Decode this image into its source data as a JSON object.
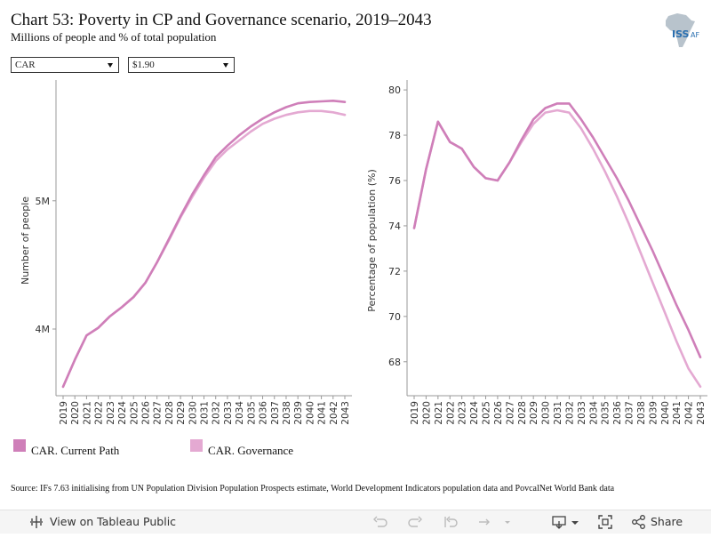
{
  "header": {
    "title": "Chart 53: Poverty in CP and Governance scenario, 2019–2043",
    "subtitle": "Millions of people and % of total population",
    "logo_text": "ISS",
    "logo_suffix": "AF"
  },
  "filters": {
    "country": "CAR",
    "poverty_line": "$1.90"
  },
  "colors": {
    "current_path": "#cf7fb9",
    "governance": "#e4a9d2",
    "axis": "#999999"
  },
  "legend": {
    "items": [
      {
        "label": "CAR. Current Path",
        "color": "#cf7fb9"
      },
      {
        "label": "CAR. Governance",
        "color": "#e4a9d2"
      }
    ]
  },
  "chart_data": [
    {
      "type": "line",
      "ylabel": "Number of people",
      "x": [
        2019,
        2020,
        2021,
        2022,
        2023,
        2024,
        2025,
        2026,
        2027,
        2028,
        2029,
        2030,
        2031,
        2032,
        2033,
        2034,
        2035,
        2036,
        2037,
        2038,
        2039,
        2040,
        2041,
        2042,
        2043
      ],
      "x_tick_labels": [
        "2019",
        "2020",
        "2021",
        "2022",
        "2023",
        "2024",
        "2025",
        "2026",
        "2027",
        "2028",
        "2029",
        "2030",
        "2031",
        "2032",
        "2033",
        "2034",
        "2035",
        "2036",
        "2037",
        "2038",
        "2039",
        "2040",
        "2041",
        "2042",
        "2043"
      ],
      "y_ticks": [
        4000000,
        5000000
      ],
      "y_tick_labels": [
        "4M",
        "5M"
      ],
      "ylim": [
        3480000,
        5900000
      ],
      "series": [
        {
          "name": "CAR. Current Path",
          "color": "#cf7fb9",
          "values": [
            3550000,
            3760000,
            3950000,
            4010000,
            4100000,
            4170000,
            4250000,
            4360000,
            4520000,
            4700000,
            4880000,
            5050000,
            5200000,
            5340000,
            5430000,
            5510000,
            5580000,
            5640000,
            5690000,
            5730000,
            5760000,
            5770000,
            5775000,
            5780000,
            5770000
          ]
        },
        {
          "name": "CAR. Governance",
          "color": "#e4a9d2",
          "values": [
            3550000,
            3760000,
            3950000,
            4010000,
            4100000,
            4170000,
            4250000,
            4360000,
            4520000,
            4690000,
            4870000,
            5030000,
            5180000,
            5310000,
            5400000,
            5470000,
            5540000,
            5600000,
            5640000,
            5670000,
            5690000,
            5700000,
            5700000,
            5690000,
            5670000
          ]
        }
      ]
    },
    {
      "type": "line",
      "ylabel": "Percentage of population (%)",
      "x": [
        2019,
        2020,
        2021,
        2022,
        2023,
        2024,
        2025,
        2026,
        2027,
        2028,
        2029,
        2030,
        2031,
        2032,
        2033,
        2034,
        2035,
        2036,
        2037,
        2038,
        2039,
        2040,
        2041,
        2042,
        2043
      ],
      "x_tick_labels": [
        "2019",
        "2020",
        "2021",
        "2022",
        "2023",
        "2024",
        "2025",
        "2026",
        "2027",
        "2028",
        "2029",
        "2030",
        "2031",
        "2032",
        "2033",
        "2034",
        "2035",
        "2036",
        "2037",
        "2038",
        "2039",
        "2040",
        "2041",
        "2042",
        "2043"
      ],
      "y_ticks": [
        68,
        70,
        72,
        74,
        76,
        78,
        80
      ],
      "y_tick_labels": [
        "68",
        "70",
        "72",
        "74",
        "76",
        "78",
        "80"
      ],
      "ylim": [
        66.5,
        80.2
      ],
      "series": [
        {
          "name": "CAR. Current Path",
          "color": "#cf7fb9",
          "values": [
            73.9,
            76.5,
            78.6,
            77.7,
            77.4,
            76.6,
            76.1,
            76.0,
            76.8,
            77.8,
            78.7,
            79.2,
            79.4,
            79.4,
            78.7,
            77.9,
            77.0,
            76.1,
            75.1,
            74.0,
            72.9,
            71.7,
            70.5,
            69.4,
            68.2
          ]
        },
        {
          "name": "CAR. Governance",
          "color": "#e4a9d2",
          "values": [
            73.9,
            76.5,
            78.6,
            77.7,
            77.4,
            76.6,
            76.1,
            76.0,
            76.8,
            77.7,
            78.5,
            79.0,
            79.1,
            79.0,
            78.3,
            77.4,
            76.4,
            75.3,
            74.1,
            72.8,
            71.5,
            70.2,
            68.9,
            67.7,
            66.9
          ]
        }
      ]
    }
  ],
  "source": "Source: IFs 7.63 initialising from UN Population Division Population Prospects estimate, World Development Indicators population data and PovcalNet World Bank data",
  "toolbar": {
    "view_label": "View on Tableau Public",
    "share_label": "Share"
  }
}
